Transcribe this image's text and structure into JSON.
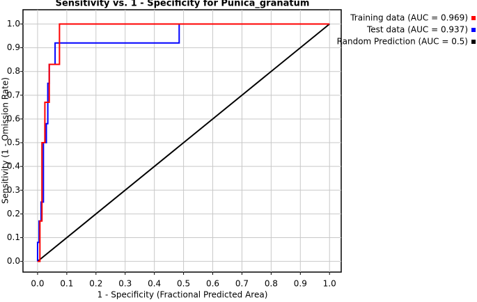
{
  "chart_data": {
    "type": "line",
    "title": "Sensitivity vs. 1 - Specificity for Punica_granatum",
    "x_label": "1 - Specificity  (Fractional Predicted Area)",
    "y_label": "Sensitivity (1 - Omission Rate)",
    "xlim": [
      -0.05,
      1.04
    ],
    "ylim": [
      -0.045,
      1.06
    ],
    "xticks": [
      {
        "value": 0,
        "label": "0.0"
      },
      0.1,
      0.2,
      0.3,
      0.4,
      0.5,
      0.6,
      0.7,
      0.8,
      0.9,
      {
        "value": 1,
        "label": "1.0"
      }
    ],
    "yticks": [
      {
        "value": 0,
        "label": "0.0"
      },
      0.1,
      0.2,
      0.3,
      0.4,
      0.5,
      0.6,
      0.7,
      0.8,
      0.9,
      {
        "value": 1,
        "label": "1.0"
      }
    ],
    "grid": true,
    "legend": "right",
    "series": [
      {
        "name": "Training data (AUC = 0.969)",
        "color": "#ff0000",
        "x": [
          0,
          0.008,
          0.008,
          0.015,
          0.015,
          0.025,
          0.025,
          0.04,
          0.04,
          0.075,
          0.075,
          1
        ],
        "values": [
          0,
          0,
          0.17,
          0.17,
          0.5,
          0.5,
          0.67,
          0.67,
          0.83,
          0.83,
          1,
          1
        ]
      },
      {
        "name": "Test data (AUC = 0.937)",
        "color": "#0000ff",
        "x": [
          0,
          0,
          0.005,
          0.005,
          0.012,
          0.012,
          0.02,
          0.02,
          0.03,
          0.03,
          0.035,
          0.035,
          0.04,
          0.04,
          0.06,
          0.06,
          0.485,
          0.485,
          1
        ],
        "values": [
          0,
          0.08,
          0.08,
          0.17,
          0.17,
          0.25,
          0.25,
          0.5,
          0.5,
          0.58,
          0.58,
          0.75,
          0.75,
          0.83,
          0.83,
          0.92,
          0.92,
          1,
          1
        ]
      },
      {
        "name": "Random Prediction (AUC = 0.5)",
        "color": "#000000",
        "x": [
          0,
          1
        ],
        "values": [
          0,
          1
        ]
      }
    ]
  }
}
